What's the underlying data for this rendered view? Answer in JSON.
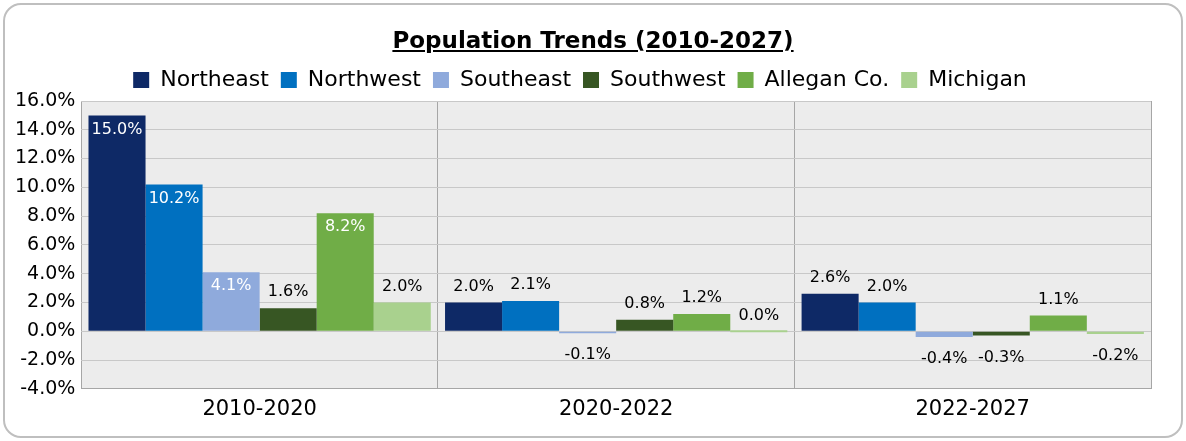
{
  "chart_data": {
    "type": "bar",
    "title": "Population Trends (2010-2027)",
    "categories": [
      "2010-2020",
      "2020-2022",
      "2022-2027"
    ],
    "series": [
      {
        "name": "Northeast",
        "color": "#0e2966",
        "values": [
          15.0,
          2.0,
          2.6
        ],
        "value_labels": [
          "15.0%",
          "2.0%",
          "2.6%"
        ]
      },
      {
        "name": "Northwest",
        "color": "#0070c0",
        "values": [
          10.2,
          2.1,
          2.0
        ],
        "value_labels": [
          "10.2%",
          "2.1%",
          "2.0%"
        ]
      },
      {
        "name": "Southeast",
        "color": "#8faadc",
        "values": [
          4.1,
          -0.1,
          -0.4
        ],
        "value_labels": [
          "4.1%",
          "-0.1%",
          "-0.4%"
        ]
      },
      {
        "name": "Southwest",
        "color": "#375623",
        "values": [
          1.6,
          0.8,
          -0.3
        ],
        "value_labels": [
          "1.6%",
          "0.8%",
          "-0.3%"
        ]
      },
      {
        "name": "Allegan Co.",
        "color": "#70ad47",
        "values": [
          8.2,
          1.2,
          1.1
        ],
        "value_labels": [
          "8.2%",
          "1.2%",
          "1.1%"
        ]
      },
      {
        "name": "Michigan",
        "color": "#a9d18e",
        "values": [
          2.0,
          0.0,
          -0.2
        ],
        "value_labels": [
          "2.0%",
          "0.0%",
          "-0.2%"
        ]
      }
    ],
    "ylim": [
      -4,
      16
    ],
    "yticks": [
      {
        "value": -4,
        "label": "-4.0%"
      },
      {
        "value": -2,
        "label": "-2.0%"
      },
      {
        "value": 0,
        "label": "0.0%"
      },
      {
        "value": 2,
        "label": "2.0%"
      },
      {
        "value": 4,
        "label": "4.0%"
      },
      {
        "value": 6,
        "label": "6.0%"
      },
      {
        "value": 8,
        "label": "8.0%"
      },
      {
        "value": 10,
        "label": "10.0%"
      },
      {
        "value": 12,
        "label": "12.0%"
      },
      {
        "value": 14,
        "label": "14.0%"
      },
      {
        "value": 16,
        "label": "16.0%"
      }
    ],
    "grid": true,
    "legend": "top"
  }
}
